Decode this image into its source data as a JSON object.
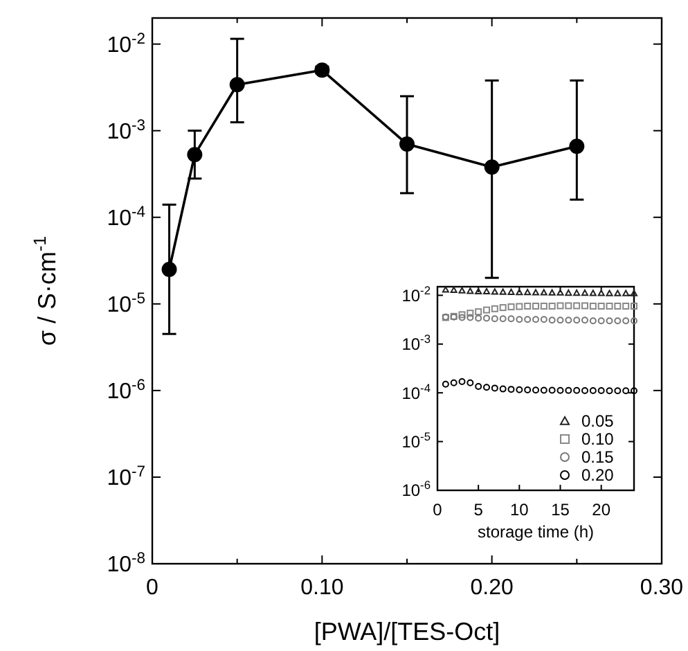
{
  "chart_data": [
    {
      "type": "line",
      "xlabel": "[PWA]/[TES-Oct]",
      "ylabel": "σ / S·cm$^{-1}$",
      "log": "y",
      "marker": "circle",
      "line_style": "solid",
      "grid": false,
      "legend": false,
      "xlim": [
        0,
        0.3
      ],
      "xticks": [
        0,
        {
          "value": 0.05,
          "label": null
        },
        {
          "value": 0.1,
          "label": "0.10"
        },
        {
          "value": 0.15,
          "label": null
        },
        {
          "value": 0.2,
          "label": "0.20"
        },
        {
          "value": 0.25,
          "label": null
        },
        {
          "value": 0.3,
          "label": "0.30"
        }
      ],
      "ylim": [
        1e-08,
        0.02
      ],
      "yticks": [
        {
          "value": 1e-08,
          "label": "10$^{-8}$"
        },
        {
          "value": 1e-07,
          "label": "10$^{-7}$"
        },
        {
          "value": 1e-06,
          "label": "10$^{-6}$"
        },
        {
          "value": 1e-05,
          "label": "10$^{-5}$"
        },
        {
          "value": 0.0001,
          "label": "10$^{-4}$"
        },
        {
          "value": 0.001,
          "label": "10$^{-3}$"
        },
        {
          "value": 0.01,
          "label": "10$^{-2}$"
        }
      ],
      "series": [
        {
          "color": "#000000",
          "x": [
            0.01,
            0.025,
            0.05,
            0.1,
            0.15,
            0.2,
            0.25
          ],
          "values": [
            2.5e-05,
            0.00053,
            0.0034,
            0.005,
            0.0007,
            0.00038,
            0.00066
          ],
          "errors": [
            [
              4.5e-06,
              0.00014
            ],
            [
              0.00028,
              0.001
            ],
            [
              0.00125,
              0.0115
            ],
            [
              0.0046,
              0.0055
            ],
            [
              0.00019,
              0.0025
            ],
            [
              2e-05,
              0.0038
            ],
            [
              0.00016,
              0.0038
            ]
          ]
        }
      ]
    },
    {
      "type": "scatter",
      "xlabel": "storage time (h)",
      "log": "y",
      "grid": false,
      "legend": "bottom right",
      "xlim": [
        0,
        24
      ],
      "xticks": [
        0,
        5,
        10,
        15,
        20
      ],
      "ylim": [
        1e-06,
        0.015
      ],
      "yticks": [
        {
          "value": 1e-06,
          "label": "10$^{-6}$"
        },
        {
          "value": 1e-05,
          "label": "10$^{-5}$"
        },
        {
          "value": 0.0001,
          "label": "10$^{-4}$"
        },
        {
          "value": 0.001,
          "label": "10$^{-3}$"
        },
        {
          "value": 0.01,
          "label": "10$^{-2}$"
        }
      ],
      "x": [
        1,
        2,
        3,
        4,
        5,
        6,
        7,
        8,
        9,
        10,
        11,
        12,
        13,
        14,
        15,
        16,
        17,
        18,
        19,
        20,
        21,
        22,
        23,
        24
      ],
      "series": [
        {
          "name": "0.05",
          "color": "#222222",
          "marker": "triangle",
          "values": [
            0.013,
            0.0128,
            0.0125,
            0.0122,
            0.012,
            0.012,
            0.0118,
            0.0117,
            0.0116,
            0.0115,
            0.0115,
            0.0114,
            0.0114,
            0.0113,
            0.0113,
            0.0112,
            0.0112,
            0.0112,
            0.0111,
            0.0111,
            0.011,
            0.011,
            0.011,
            0.011
          ]
        },
        {
          "name": "0.10",
          "color": "#888888",
          "marker": "square",
          "values": [
            0.0035,
            0.0037,
            0.004,
            0.0043,
            0.0046,
            0.005,
            0.0053,
            0.0056,
            0.0058,
            0.0059,
            0.006,
            0.006,
            0.006,
            0.006,
            0.0061,
            0.0061,
            0.0061,
            0.0061,
            0.006,
            0.006,
            0.006,
            0.006,
            0.006,
            0.006
          ]
        },
        {
          "name": "0.15",
          "color": "#777777",
          "marker": "circle",
          "values": [
            0.0036,
            0.0036,
            0.0035,
            0.0035,
            0.0034,
            0.0034,
            0.0033,
            0.0033,
            0.0033,
            0.0032,
            0.0032,
            0.0032,
            0.0032,
            0.0031,
            0.0031,
            0.0031,
            0.0031,
            0.0031,
            0.003,
            0.003,
            0.003,
            0.003,
            0.003,
            0.003
          ]
        },
        {
          "name": "0.20",
          "color": "#000000",
          "marker": "circle",
          "values": [
            0.00015,
            0.00016,
            0.00017,
            0.00016,
            0.000135,
            0.00013,
            0.000125,
            0.00012,
            0.000118,
            0.000116,
            0.000115,
            0.000114,
            0.000113,
            0.000113,
            0.000112,
            0.000112,
            0.000112,
            0.000111,
            0.000111,
            0.000111,
            0.00011,
            0.00011,
            0.00011,
            0.00011
          ]
        }
      ]
    }
  ]
}
